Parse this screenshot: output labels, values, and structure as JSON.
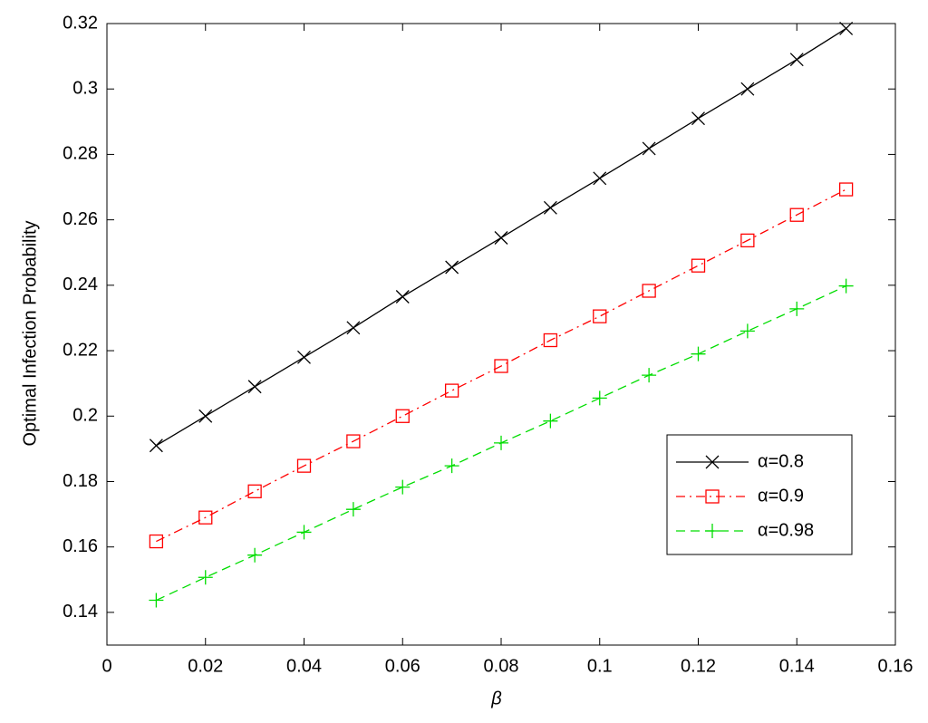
{
  "chart_data": {
    "type": "line",
    "x_label": "β",
    "y_label": "Optimal Infection Probability",
    "x": [
      0.01,
      0.02,
      0.03,
      0.04,
      0.05,
      0.06,
      0.07,
      0.08,
      0.09,
      0.1,
      0.11,
      0.12,
      0.13,
      0.14,
      0.15
    ],
    "series": [
      {
        "name": "α=0.8",
        "color": "#000000",
        "marker": "x",
        "dash": "solid",
        "values": [
          0.191,
          0.2,
          0.209,
          0.218,
          0.227,
          0.2365,
          0.2455,
          0.2545,
          0.2637,
          0.2727,
          0.2818,
          0.291,
          0.3,
          0.309,
          0.3185
        ]
      },
      {
        "name": "α=0.9",
        "color": "#ff0000",
        "marker": "square",
        "dash": "dashdot",
        "values": [
          0.1617,
          0.169,
          0.177,
          0.1848,
          0.1923,
          0.2,
          0.2078,
          0.2153,
          0.2232,
          0.2305,
          0.2383,
          0.246,
          0.2537,
          0.2615,
          0.2693
        ]
      },
      {
        "name": "α=0.98",
        "color": "#00dd00",
        "marker": "plus",
        "dash": "dashed",
        "values": [
          0.1437,
          0.1507,
          0.1575,
          0.1645,
          0.1715,
          0.1783,
          0.1848,
          0.1918,
          0.1985,
          0.2055,
          0.2125,
          0.219,
          0.226,
          0.2328,
          0.2398
        ]
      }
    ],
    "xlim": [
      0,
      0.16
    ],
    "xticks": [
      0,
      0.02,
      0.04,
      0.06,
      0.08,
      0.1,
      0.12,
      0.14,
      0.16
    ],
    "ylim": [
      0.13,
      0.32
    ],
    "yticks": [
      0.14,
      0.16,
      0.18,
      0.2,
      0.22,
      0.24,
      0.26,
      0.28,
      0.3,
      0.32
    ],
    "grid": false,
    "legend": "lower right"
  }
}
